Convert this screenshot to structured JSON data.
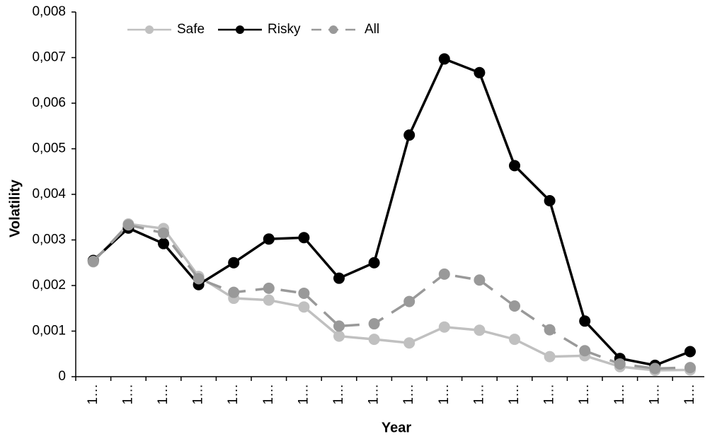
{
  "chart_data": {
    "type": "line",
    "x_label": "Year",
    "y_label": "Volatility",
    "categories": [
      "1…",
      "1…",
      "1…",
      "1…",
      "1…",
      "1…",
      "1…",
      "1…",
      "1…",
      "1…",
      "1…",
      "1…",
      "1…",
      "1…",
      "1…",
      "1…",
      "1…",
      "1…"
    ],
    "series": [
      {
        "name": "Safe",
        "color": "#c0c0c0",
        "dashed": false,
        "values": [
          0.00252,
          0.00335,
          0.00325,
          0.0022,
          0.00172,
          0.00168,
          0.00153,
          0.00089,
          0.00082,
          0.00074,
          0.00109,
          0.00102,
          0.00082,
          0.00044,
          0.00046,
          0.00022,
          0.00014,
          0.00015
        ]
      },
      {
        "name": "Risky",
        "color": "#000000",
        "dashed": false,
        "values": [
          0.00255,
          0.00326,
          0.00292,
          0.00202,
          0.0025,
          0.00302,
          0.00305,
          0.00216,
          0.0025,
          0.0053,
          0.00697,
          0.00667,
          0.00463,
          0.00386,
          0.00122,
          0.0004,
          0.00025,
          0.00055
        ]
      },
      {
        "name": "All",
        "color": "#999999",
        "dashed": true,
        "values": [
          0.00253,
          0.00333,
          0.00315,
          0.00215,
          0.00185,
          0.00194,
          0.00183,
          0.00111,
          0.00116,
          0.00165,
          0.00225,
          0.00212,
          0.00155,
          0.00103,
          0.00057,
          0.00028,
          0.00018,
          0.0002
        ]
      }
    ],
    "ylim": [
      0,
      0.008
    ],
    "yticks": [
      0,
      {
        "value": 0.001,
        "label": "0,001"
      },
      {
        "value": 0.002,
        "label": "0,002"
      },
      {
        "value": 0.003,
        "label": "0,003"
      },
      {
        "value": 0.004,
        "label": "0,004"
      },
      {
        "value": 0.005,
        "label": "0,005"
      },
      {
        "value": 0.006,
        "label": "0,006"
      },
      {
        "value": 0.007,
        "label": "0,007"
      },
      {
        "value": 0.008,
        "label": "0,008"
      }
    ],
    "grid": false,
    "legend": "top"
  }
}
